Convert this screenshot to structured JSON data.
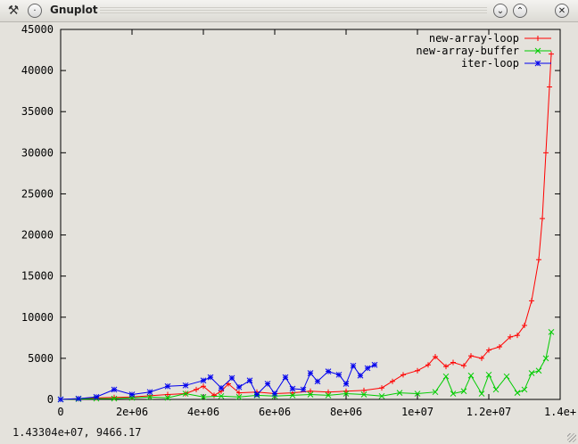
{
  "window": {
    "title": "Gnuplot",
    "icons": {
      "app": "tools-icon",
      "menu": "circle-menu-icon",
      "minimize": "chevron-down-icon",
      "maximize": "chevron-up-icon",
      "close": "close-icon"
    }
  },
  "status": {
    "coords": "1.43304e+07,  9466.17"
  },
  "chart_data": {
    "type": "line",
    "title": "",
    "xlabel": "",
    "ylabel": "",
    "xlim": [
      0,
      14000000
    ],
    "ylim": [
      0,
      45000
    ],
    "xticks": [
      0,
      2000000,
      4000000,
      6000000,
      8000000,
      10000000,
      12000000,
      14000000
    ],
    "xtick_labels": [
      "0",
      "2e+06",
      "4e+06",
      "6e+06",
      "8e+06",
      "1e+07",
      "1.2e+07",
      "1.4e+"
    ],
    "yticks": [
      0,
      5000,
      10000,
      15000,
      20000,
      25000,
      30000,
      35000,
      40000,
      45000
    ],
    "ytick_labels": [
      "0",
      "5000",
      "10000",
      "15000",
      "20000",
      "25000",
      "30000",
      "35000",
      "40000",
      "45000"
    ],
    "grid": false,
    "legend_position": "top-right",
    "series": [
      {
        "name": "new-array-loop",
        "color": "#ff0000",
        "marker": "+",
        "x": [
          0,
          500000,
          1000000,
          1500000,
          2000000,
          2500000,
          3000000,
          3500000,
          3800000,
          4000000,
          4300000,
          4500000,
          4700000,
          5000000,
          5500000,
          6000000,
          6500000,
          7000000,
          7500000,
          8000000,
          8500000,
          9000000,
          9300000,
          9600000,
          10000000,
          10300000,
          10500000,
          10800000,
          11000000,
          11300000,
          11500000,
          11800000,
          12000000,
          12300000,
          12600000,
          12800000,
          13000000,
          13200000,
          13400000,
          13500000,
          13600000,
          13700000,
          13750000
        ],
        "y": [
          0,
          100,
          200,
          250,
          300,
          450,
          600,
          700,
          1200,
          1600,
          500,
          1000,
          1900,
          800,
          900,
          700,
          800,
          1000,
          900,
          1000,
          1100,
          1400,
          2200,
          3000,
          3500,
          4200,
          5200,
          4000,
          4500,
          4100,
          5300,
          5000,
          6000,
          6400,
          7600,
          7800,
          9000,
          12000,
          17000,
          22000,
          30000,
          38000,
          42000
        ]
      },
      {
        "name": "new-array-buffer",
        "color": "#00cc00",
        "marker": "x",
        "x": [
          0,
          500000,
          1000000,
          1500000,
          2000000,
          2500000,
          3000000,
          3500000,
          4000000,
          4500000,
          5000000,
          5500000,
          6000000,
          6500000,
          7000000,
          7500000,
          8000000,
          8500000,
          9000000,
          9500000,
          10000000,
          10500000,
          10800000,
          11000000,
          11300000,
          11500000,
          11800000,
          12000000,
          12200000,
          12500000,
          12800000,
          13000000,
          13200000,
          13400000,
          13600000,
          13750000
        ],
        "y": [
          0,
          50,
          100,
          100,
          200,
          300,
          200,
          700,
          300,
          400,
          300,
          500,
          400,
          500,
          600,
          500,
          700,
          600,
          400,
          800,
          700,
          900,
          2800,
          700,
          1000,
          2900,
          700,
          3000,
          1200,
          2800,
          800,
          1200,
          3200,
          3500,
          5000,
          8200
        ]
      },
      {
        "name": "iter-loop",
        "color": "#0000ee",
        "marker": "*",
        "x": [
          0,
          500000,
          1000000,
          1500000,
          2000000,
          2500000,
          3000000,
          3500000,
          4000000,
          4200000,
          4500000,
          4800000,
          5000000,
          5300000,
          5500000,
          5800000,
          6000000,
          6300000,
          6500000,
          6800000,
          7000000,
          7200000,
          7500000,
          7800000,
          8000000,
          8200000,
          8400000,
          8600000,
          8800000
        ],
        "y": [
          0,
          100,
          300,
          1200,
          600,
          900,
          1600,
          1700,
          2300,
          2700,
          1400,
          2600,
          1500,
          2300,
          600,
          1900,
          700,
          2700,
          1300,
          1200,
          3200,
          2200,
          3400,
          3000,
          1900,
          4100,
          2900,
          3800,
          4200
        ]
      }
    ]
  }
}
